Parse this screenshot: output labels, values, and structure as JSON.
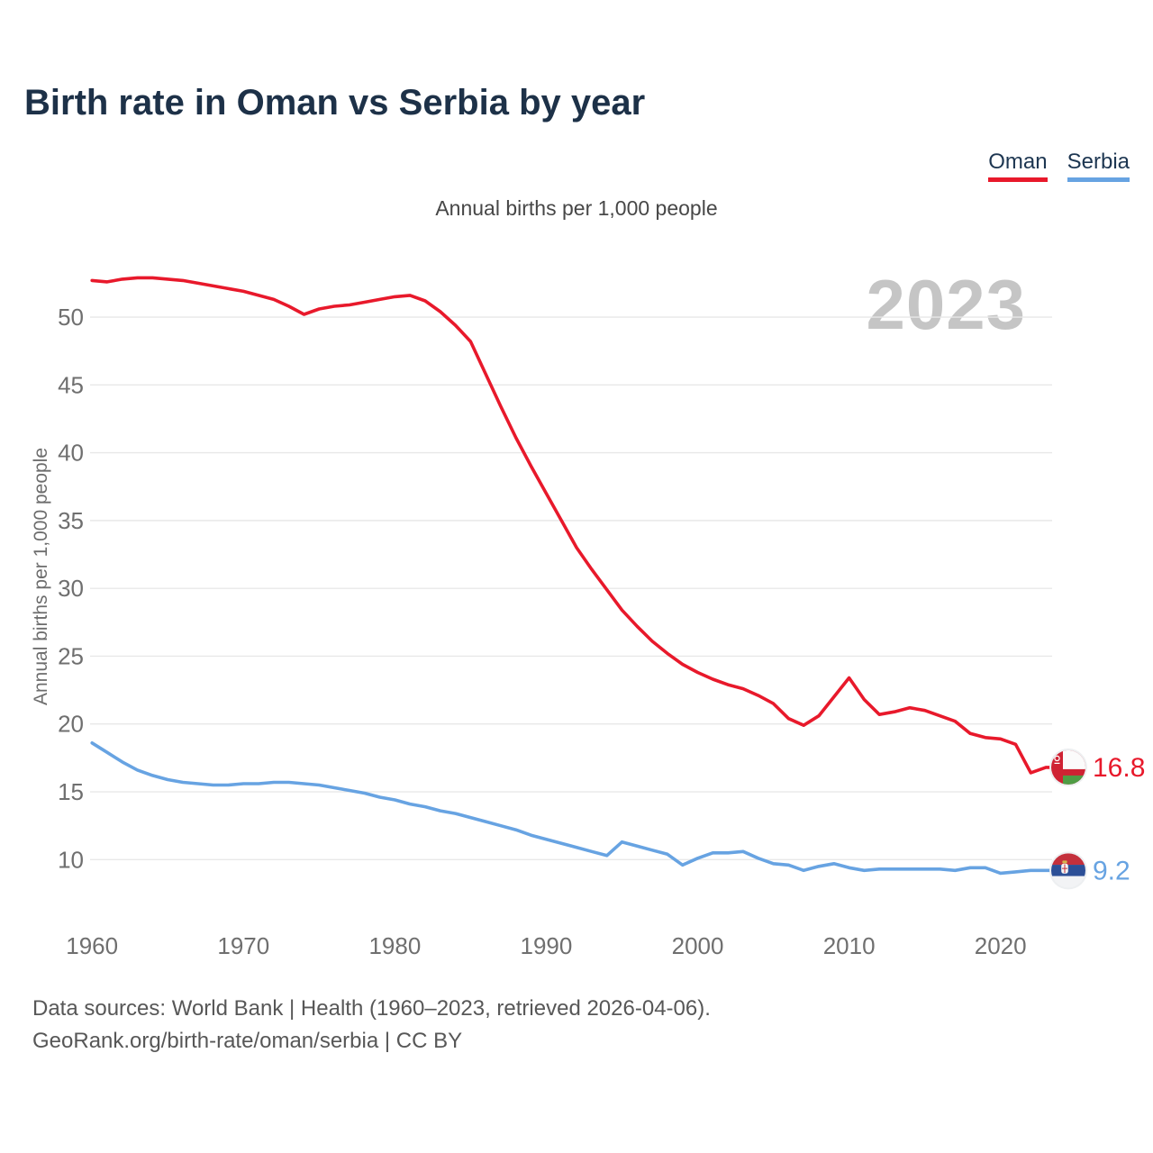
{
  "page": {
    "title": "Birth rate in Oman vs Serbia by year"
  },
  "legend": {
    "items": [
      {
        "label": "Oman",
        "color": "#e8192b"
      },
      {
        "label": "Serbia",
        "color": "#67a3e2"
      }
    ]
  },
  "subtitle": "Annual births per 1,000 people",
  "watermark": "2023",
  "y_axis": {
    "title": "Annual births per 1,000 people",
    "ticks": [
      50,
      45,
      40,
      35,
      30,
      25,
      20,
      15,
      10
    ]
  },
  "x_axis": {
    "ticks": [
      1960,
      1970,
      1980,
      1990,
      2000,
      2010,
      2020
    ]
  },
  "footer": {
    "line1": "Data sources: World Bank | Health (1960–2023, retrieved 2026-04-06).",
    "line2": "GeoRank.org/birth-rate/oman/serbia | CC BY"
  },
  "chart_data": {
    "type": "line",
    "title": "Birth rate in Oman vs Serbia by year",
    "ylabel": "Annual births per 1,000 people",
    "xlabel": "",
    "x_range": [
      1960,
      2023
    ],
    "ylim": [
      8.5,
      53.5
    ],
    "grid": true,
    "legend_position": "top-right",
    "years": [
      1960,
      1961,
      1962,
      1963,
      1964,
      1965,
      1966,
      1967,
      1968,
      1969,
      1970,
      1971,
      1972,
      1973,
      1974,
      1975,
      1976,
      1977,
      1978,
      1979,
      1980,
      1981,
      1982,
      1983,
      1984,
      1985,
      1986,
      1987,
      1988,
      1989,
      1990,
      1991,
      1992,
      1993,
      1994,
      1995,
      1996,
      1997,
      1998,
      1999,
      2000,
      2001,
      2002,
      2003,
      2004,
      2005,
      2006,
      2007,
      2008,
      2009,
      2010,
      2011,
      2012,
      2013,
      2014,
      2015,
      2016,
      2017,
      2018,
      2019,
      2020,
      2021,
      2022,
      2023
    ],
    "series": [
      {
        "name": "Oman",
        "color": "#e8192b",
        "end_label": "16.8",
        "icon": "oman-flag-icon",
        "values": [
          52.7,
          52.6,
          52.8,
          52.9,
          52.9,
          52.8,
          52.7,
          52.5,
          52.3,
          52.1,
          51.9,
          51.6,
          51.3,
          50.8,
          50.2,
          50.6,
          50.8,
          50.9,
          51.1,
          51.3,
          51.5,
          51.6,
          51.2,
          50.4,
          49.4,
          48.2,
          45.8,
          43.4,
          41.1,
          39.0,
          37.0,
          35.0,
          33.0,
          31.4,
          29.9,
          28.4,
          27.2,
          26.1,
          25.2,
          24.4,
          23.8,
          23.3,
          22.9,
          22.6,
          22.1,
          21.5,
          20.4,
          19.9,
          20.6,
          22.0,
          23.4,
          21.8,
          20.7,
          20.9,
          21.2,
          21.0,
          20.6,
          20.2,
          19.3,
          19.0,
          18.9,
          18.5,
          16.4,
          16.8
        ]
      },
      {
        "name": "Serbia",
        "color": "#67a3e2",
        "end_label": "9.2",
        "icon": "serbia-flag-icon",
        "values": [
          18.6,
          17.9,
          17.2,
          16.6,
          16.2,
          15.9,
          15.7,
          15.6,
          15.5,
          15.5,
          15.6,
          15.6,
          15.7,
          15.7,
          15.6,
          15.5,
          15.3,
          15.1,
          14.9,
          14.6,
          14.4,
          14.1,
          13.9,
          13.6,
          13.4,
          13.1,
          12.8,
          12.5,
          12.2,
          11.8,
          11.5,
          11.2,
          10.9,
          10.6,
          10.3,
          11.3,
          11.0,
          10.7,
          10.4,
          9.6,
          10.1,
          10.5,
          10.5,
          10.6,
          10.1,
          9.7,
          9.6,
          9.2,
          9.5,
          9.7,
          9.4,
          9.2,
          9.3,
          9.3,
          9.3,
          9.3,
          9.3,
          9.2,
          9.4,
          9.4,
          9.0,
          9.1,
          9.2,
          9.2
        ]
      }
    ]
  }
}
